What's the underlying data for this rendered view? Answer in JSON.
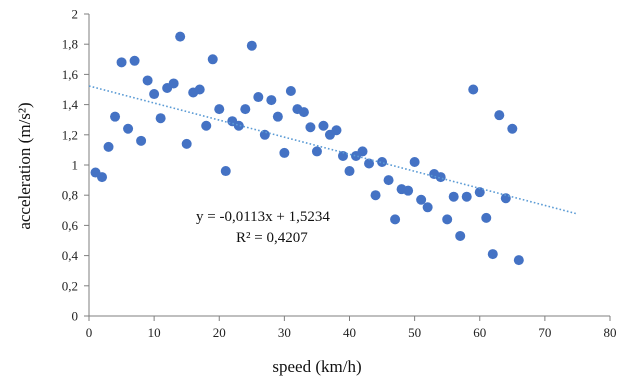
{
  "chart_data": {
    "type": "scatter",
    "xlabel": "speed (km/h)",
    "ylabel": "acceleration (m/s²)",
    "xlim": [
      0,
      80
    ],
    "ylim": [
      0,
      2
    ],
    "x_ticks": [
      "0",
      "10",
      "20",
      "30",
      "40",
      "50",
      "60",
      "70",
      "80"
    ],
    "y_ticks": [
      "0",
      "0,2",
      "0,4",
      "0,6",
      "0,8",
      "1",
      "1,2",
      "1,4",
      "1,6",
      "1,8",
      "2"
    ],
    "grid": false,
    "legend": "none",
    "marker_color": "#4472C4",
    "trendline": {
      "style": "dotted",
      "color": "#5B9BD5",
      "slope": -0.0113,
      "intercept": 1.5234,
      "x_range": [
        0,
        75
      ],
      "equation_label": "y = -0,0113x + 1,5234",
      "r2_label": "R² = 0,4207"
    },
    "points": [
      {
        "x": 1,
        "y": 0.95
      },
      {
        "x": 2,
        "y": 0.92
      },
      {
        "x": 3,
        "y": 1.12
      },
      {
        "x": 4,
        "y": 1.32
      },
      {
        "x": 5,
        "y": 1.68
      },
      {
        "x": 6,
        "y": 1.24
      },
      {
        "x": 7,
        "y": 1.69
      },
      {
        "x": 8,
        "y": 1.16
      },
      {
        "x": 9,
        "y": 1.56
      },
      {
        "x": 10,
        "y": 1.47
      },
      {
        "x": 11,
        "y": 1.31
      },
      {
        "x": 12,
        "y": 1.51
      },
      {
        "x": 13,
        "y": 1.54
      },
      {
        "x": 14,
        "y": 1.85
      },
      {
        "x": 15,
        "y": 1.14
      },
      {
        "x": 16,
        "y": 1.48
      },
      {
        "x": 17,
        "y": 1.5
      },
      {
        "x": 18,
        "y": 1.26
      },
      {
        "x": 19,
        "y": 1.7
      },
      {
        "x": 20,
        "y": 1.37
      },
      {
        "x": 21,
        "y": 0.96
      },
      {
        "x": 22,
        "y": 1.29
      },
      {
        "x": 23,
        "y": 1.26
      },
      {
        "x": 24,
        "y": 1.37
      },
      {
        "x": 25,
        "y": 1.79
      },
      {
        "x": 26,
        "y": 1.45
      },
      {
        "x": 27,
        "y": 1.2
      },
      {
        "x": 28,
        "y": 1.43
      },
      {
        "x": 29,
        "y": 1.32
      },
      {
        "x": 30,
        "y": 1.08
      },
      {
        "x": 31,
        "y": 1.49
      },
      {
        "x": 32,
        "y": 1.37
      },
      {
        "x": 33,
        "y": 1.35
      },
      {
        "x": 34,
        "y": 1.25
      },
      {
        "x": 35,
        "y": 1.09
      },
      {
        "x": 36,
        "y": 1.26
      },
      {
        "x": 37,
        "y": 1.2
      },
      {
        "x": 38,
        "y": 1.23
      },
      {
        "x": 39,
        "y": 1.06
      },
      {
        "x": 40,
        "y": 0.96
      },
      {
        "x": 41,
        "y": 1.06
      },
      {
        "x": 42,
        "y": 1.09
      },
      {
        "x": 43,
        "y": 1.01
      },
      {
        "x": 44,
        "y": 0.8
      },
      {
        "x": 45,
        "y": 1.02
      },
      {
        "x": 46,
        "y": 0.9
      },
      {
        "x": 47,
        "y": 0.64
      },
      {
        "x": 48,
        "y": 0.84
      },
      {
        "x": 49,
        "y": 0.83
      },
      {
        "x": 50,
        "y": 1.02
      },
      {
        "x": 51,
        "y": 0.77
      },
      {
        "x": 52,
        "y": 0.72
      },
      {
        "x": 53,
        "y": 0.94
      },
      {
        "x": 54,
        "y": 0.92
      },
      {
        "x": 55,
        "y": 0.64
      },
      {
        "x": 56,
        "y": 0.79
      },
      {
        "x": 57,
        "y": 0.53
      },
      {
        "x": 58,
        "y": 0.79
      },
      {
        "x": 59,
        "y": 1.5
      },
      {
        "x": 60,
        "y": 0.82
      },
      {
        "x": 61,
        "y": 0.65
      },
      {
        "x": 62,
        "y": 0.41
      },
      {
        "x": 63,
        "y": 1.33
      },
      {
        "x": 64,
        "y": 0.78
      },
      {
        "x": 65,
        "y": 1.24
      },
      {
        "x": 66,
        "y": 0.37
      }
    ]
  }
}
